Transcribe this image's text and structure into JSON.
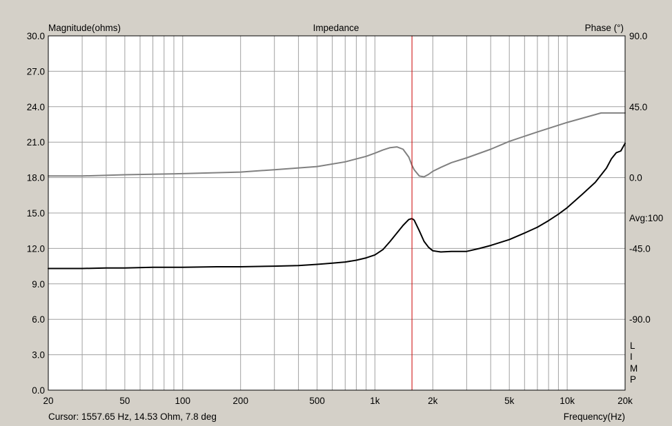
{
  "header": {
    "left_label": "Magnitude(ohms)",
    "title": "Impedance",
    "right_label": "Phase (°)"
  },
  "side": {
    "avg_label": "Avg:100",
    "vertical_tag": [
      "L",
      "I",
      "M",
      "P"
    ]
  },
  "footer": {
    "cursor_text": "Cursor: 1557.65 Hz, 14.53 Ohm, 7.8 deg",
    "x_label": "Frequency(Hz)"
  },
  "cursor": {
    "frequency_hz": 1557.65,
    "color": "#cc0000"
  },
  "colors": {
    "background": "#d4d0c8",
    "plot_background": "#ffffff",
    "grid": "#a0a0a0",
    "magnitude_line": "#000000",
    "phase_line": "#808080"
  },
  "chart_data": {
    "type": "line",
    "title": "Impedance",
    "xlabel": "Frequency(Hz)",
    "ylabel": "Magnitude(ohms)",
    "y2label": "Phase (°)",
    "x_scale": "log",
    "xlim": [
      20,
      20000
    ],
    "ylim": [
      0,
      30
    ],
    "y2lim": [
      -135,
      90
    ],
    "grid": true,
    "x_ticks": [
      {
        "value": 20,
        "label": "20"
      },
      {
        "value": 50,
        "label": "50"
      },
      {
        "value": 100,
        "label": "100"
      },
      {
        "value": 200,
        "label": "200"
      },
      {
        "value": 500,
        "label": "500"
      },
      {
        "value": 1000,
        "label": "1k"
      },
      {
        "value": 2000,
        "label": "2k"
      },
      {
        "value": 5000,
        "label": "5k"
      },
      {
        "value": 10000,
        "label": "10k"
      },
      {
        "value": 20000,
        "label": "20k"
      }
    ],
    "y_ticks": [
      {
        "value": 0,
        "label": "0.0"
      },
      {
        "value": 3,
        "label": "3.0"
      },
      {
        "value": 6,
        "label": "6.0"
      },
      {
        "value": 9,
        "label": "9.0"
      },
      {
        "value": 12,
        "label": "12.0"
      },
      {
        "value": 15,
        "label": "15.0"
      },
      {
        "value": 18,
        "label": "18.0"
      },
      {
        "value": 21,
        "label": "21.0"
      },
      {
        "value": 24,
        "label": "24.0"
      },
      {
        "value": 27,
        "label": "27.0"
      },
      {
        "value": 30,
        "label": "30.0"
      }
    ],
    "y2_ticks": [
      {
        "value": 90,
        "label": "90.0"
      },
      {
        "value": 45,
        "label": "45.0"
      },
      {
        "value": 0,
        "label": "0.0"
      },
      {
        "value": -45,
        "label": "-45.0"
      },
      {
        "value": -90,
        "label": "-90.0"
      }
    ],
    "series": [
      {
        "key": "magnitude",
        "axis": "left",
        "x": [
          20,
          30,
          40,
          50,
          70,
          100,
          150,
          200,
          300,
          400,
          500,
          600,
          700,
          800,
          900,
          1000,
          1100,
          1200,
          1300,
          1400,
          1500,
          1557.65,
          1600,
          1700,
          1800,
          1900,
          2000,
          2200,
          2500,
          3000,
          3500,
          4000,
          5000,
          6000,
          7000,
          8000,
          9000,
          10000,
          12000,
          14000,
          16000,
          17000,
          18000,
          19000,
          20000
        ],
        "y": [
          10.3,
          10.3,
          10.35,
          10.35,
          10.4,
          10.4,
          10.45,
          10.45,
          10.5,
          10.55,
          10.65,
          10.75,
          10.85,
          11.0,
          11.2,
          11.45,
          11.9,
          12.6,
          13.3,
          13.95,
          14.45,
          14.53,
          14.4,
          13.5,
          12.6,
          12.1,
          11.8,
          11.7,
          11.75,
          11.75,
          12.0,
          12.25,
          12.75,
          13.3,
          13.8,
          14.35,
          14.9,
          15.45,
          16.6,
          17.6,
          18.8,
          19.6,
          20.1,
          20.25,
          20.9
        ]
      },
      {
        "key": "phase",
        "axis": "right",
        "x": [
          20,
          30,
          50,
          100,
          200,
          300,
          500,
          700,
          900,
          1000,
          1100,
          1200,
          1300,
          1400,
          1500,
          1557.65,
          1600,
          1700,
          1800,
          1900,
          2000,
          2200,
          2500,
          3000,
          4000,
          5000,
          7000,
          10000,
          15000,
          20000
        ],
        "y": [
          1.0,
          1.0,
          1.8,
          2.5,
          3.5,
          5.0,
          7.0,
          10.0,
          13.5,
          15.5,
          17.5,
          19.0,
          19.5,
          18.0,
          13.0,
          7.8,
          5.0,
          1.0,
          0.5,
          2.0,
          4.0,
          6.5,
          9.5,
          12.5,
          18.0,
          23.0,
          29.0,
          35.0,
          41.0,
          41.0
        ]
      }
    ]
  }
}
